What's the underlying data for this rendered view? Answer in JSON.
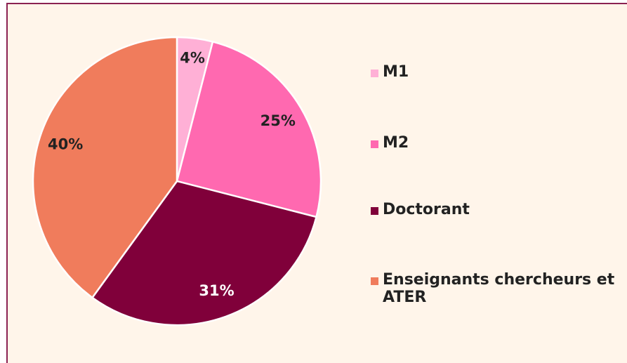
{
  "chart_data": {
    "type": "pie",
    "categories": [
      "M1",
      "M2",
      "Doctorant",
      "Enseignants chercheurs et ATER"
    ],
    "values": [
      4,
      25,
      31,
      40
    ],
    "value_labels": [
      "4%",
      "25%",
      "31%",
      "40%"
    ],
    "colors": [
      "#ffb0d6",
      "#ff69b0",
      "#80003a",
      "#f07c5c"
    ],
    "legend": "right"
  }
}
